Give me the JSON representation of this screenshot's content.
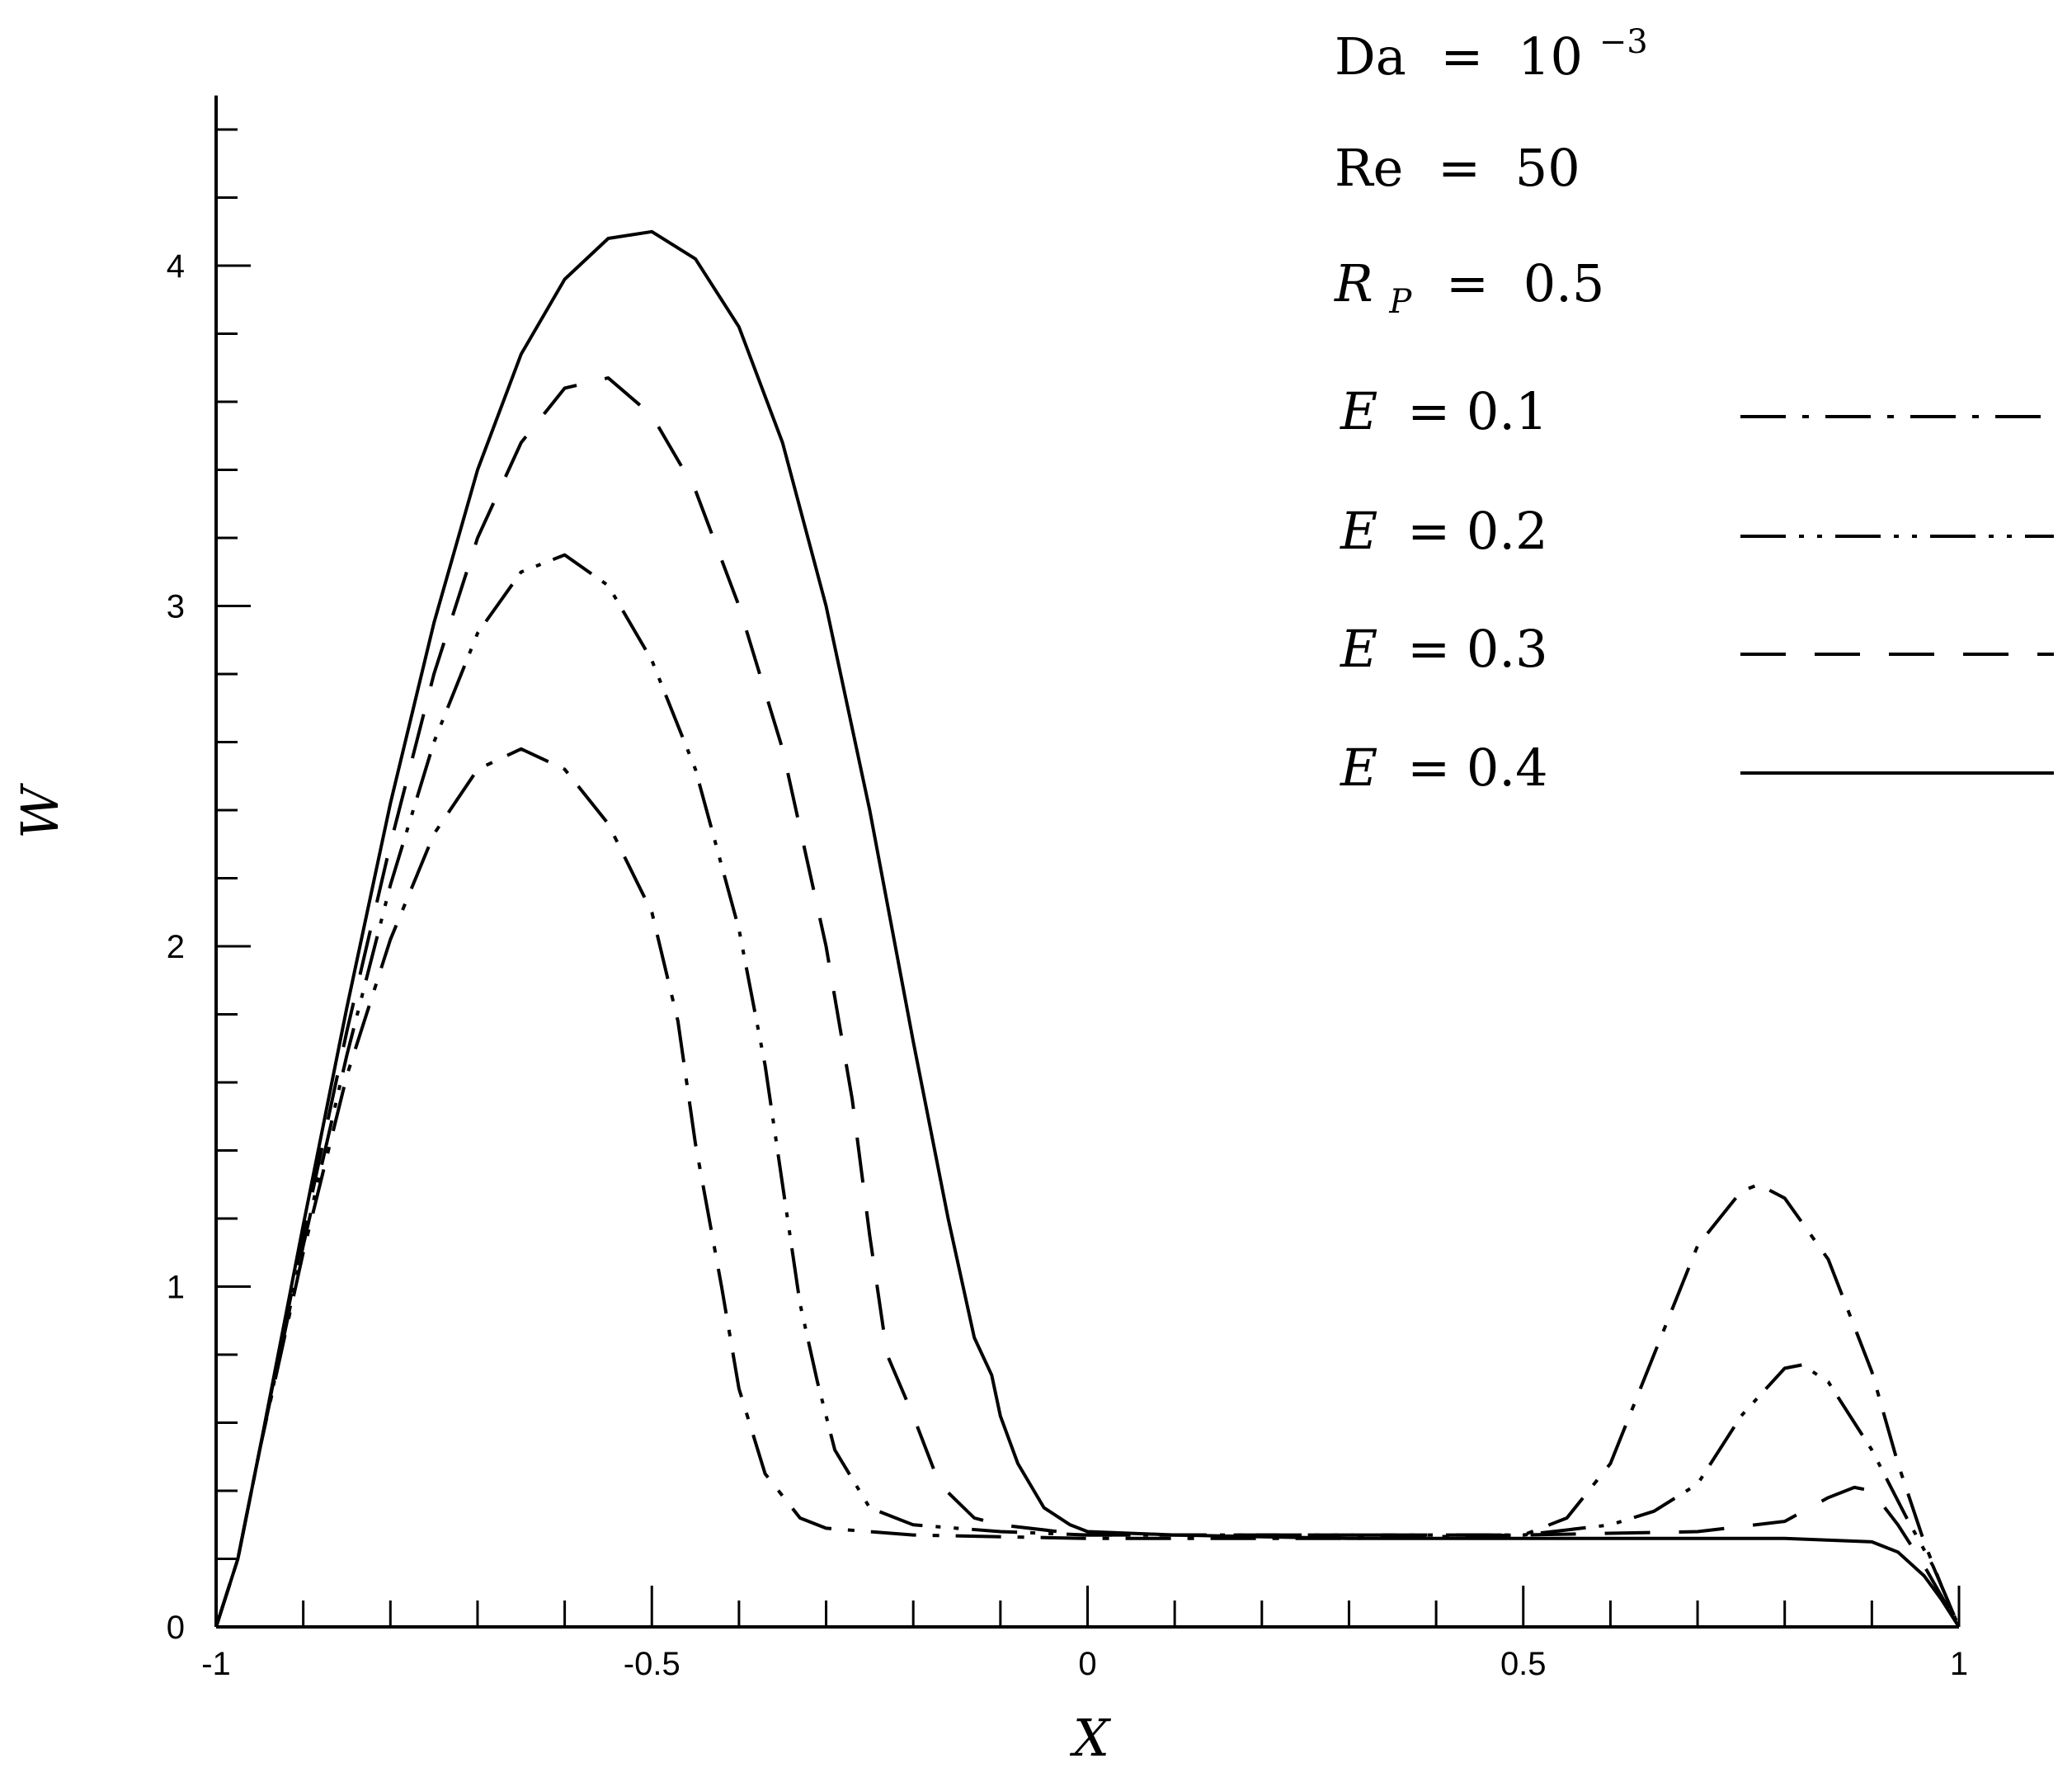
{
  "chart_data": {
    "type": "line",
    "title": "",
    "xlabel": "X",
    "ylabel": "W",
    "xlim": [
      -1,
      1
    ],
    "ylim": [
      0,
      4.5
    ],
    "x_ticks": [
      -1,
      -0.5,
      0,
      0.5,
      1
    ],
    "x_tick_labels": [
      "-1",
      "-0.5",
      "0",
      "0.5",
      "1"
    ],
    "y_ticks": [
      0,
      1,
      2,
      3,
      4
    ],
    "y_tick_labels": [
      "0",
      "1",
      "2",
      "3",
      "4"
    ],
    "grid": false,
    "legend_position": "top-right",
    "parameters": [
      {
        "name": "Da",
        "eq": "=",
        "base": "10",
        "exp": "−3"
      },
      {
        "name": "Re",
        "eq": "=",
        "value": "50"
      },
      {
        "name": "R",
        "sub": "P",
        "eq": "=",
        "value": "0.5"
      }
    ],
    "series": [
      {
        "name": "E",
        "legend_value": "= 0.1",
        "dash": "dash-dot",
        "points": [
          [
            -1,
            0
          ],
          [
            -0.975,
            0.2
          ],
          [
            -0.95,
            0.52
          ],
          [
            -0.9,
            1.1
          ],
          [
            -0.85,
            1.62
          ],
          [
            -0.8,
            2.02
          ],
          [
            -0.75,
            2.33
          ],
          [
            -0.7,
            2.52
          ],
          [
            -0.65,
            2.58
          ],
          [
            -0.6,
            2.52
          ],
          [
            -0.55,
            2.36
          ],
          [
            -0.5,
            2.1
          ],
          [
            -0.47,
            1.78
          ],
          [
            -0.45,
            1.42
          ],
          [
            -0.42,
            1.0
          ],
          [
            -0.4,
            0.7
          ],
          [
            -0.37,
            0.45
          ],
          [
            -0.33,
            0.32
          ],
          [
            -0.3,
            0.29
          ],
          [
            -0.2,
            0.27
          ],
          [
            0,
            0.26
          ],
          [
            0.3,
            0.26
          ],
          [
            0.5,
            0.27
          ],
          [
            0.55,
            0.32
          ],
          [
            0.6,
            0.48
          ],
          [
            0.65,
            0.8
          ],
          [
            0.7,
            1.12
          ],
          [
            0.75,
            1.28
          ],
          [
            0.77,
            1.3
          ],
          [
            0.8,
            1.26
          ],
          [
            0.85,
            1.08
          ],
          [
            0.9,
            0.75
          ],
          [
            0.93,
            0.48
          ],
          [
            0.96,
            0.25
          ],
          [
            0.98,
            0.12
          ],
          [
            1,
            0
          ]
        ]
      },
      {
        "name": "E",
        "legend_value": "= 0.2",
        "dash": "dash-dot-dot",
        "points": [
          [
            -1,
            0
          ],
          [
            -0.975,
            0.2
          ],
          [
            -0.95,
            0.52
          ],
          [
            -0.9,
            1.12
          ],
          [
            -0.85,
            1.68
          ],
          [
            -0.8,
            2.18
          ],
          [
            -0.75,
            2.6
          ],
          [
            -0.7,
            2.92
          ],
          [
            -0.65,
            3.1
          ],
          [
            -0.6,
            3.15
          ],
          [
            -0.55,
            3.06
          ],
          [
            -0.5,
            2.84
          ],
          [
            -0.45,
            2.52
          ],
          [
            -0.4,
            2.05
          ],
          [
            -0.37,
            1.65
          ],
          [
            -0.35,
            1.3
          ],
          [
            -0.33,
            0.95
          ],
          [
            -0.31,
            0.72
          ],
          [
            -0.29,
            0.52
          ],
          [
            -0.25,
            0.35
          ],
          [
            -0.2,
            0.3
          ],
          [
            -0.1,
            0.28
          ],
          [
            0,
            0.27
          ],
          [
            0.3,
            0.27
          ],
          [
            0.5,
            0.27
          ],
          [
            0.6,
            0.3
          ],
          [
            0.65,
            0.34
          ],
          [
            0.7,
            0.42
          ],
          [
            0.75,
            0.62
          ],
          [
            0.8,
            0.76
          ],
          [
            0.82,
            0.77
          ],
          [
            0.85,
            0.72
          ],
          [
            0.9,
            0.52
          ],
          [
            0.94,
            0.32
          ],
          [
            0.97,
            0.18
          ],
          [
            1,
            0
          ]
        ]
      },
      {
        "name": "E",
        "legend_value": "= 0.3",
        "dash": "dashed",
        "points": [
          [
            -1,
            0
          ],
          [
            -0.975,
            0.2
          ],
          [
            -0.95,
            0.52
          ],
          [
            -0.9,
            1.15
          ],
          [
            -0.85,
            1.75
          ],
          [
            -0.8,
            2.3
          ],
          [
            -0.75,
            2.8
          ],
          [
            -0.7,
            3.2
          ],
          [
            -0.65,
            3.48
          ],
          [
            -0.6,
            3.64
          ],
          [
            -0.55,
            3.67
          ],
          [
            -0.5,
            3.56
          ],
          [
            -0.45,
            3.34
          ],
          [
            -0.4,
            3.0
          ],
          [
            -0.35,
            2.58
          ],
          [
            -0.3,
            2.0
          ],
          [
            -0.27,
            1.55
          ],
          [
            -0.25,
            1.15
          ],
          [
            -0.23,
            0.8
          ],
          [
            -0.2,
            0.62
          ],
          [
            -0.17,
            0.42
          ],
          [
            -0.13,
            0.32
          ],
          [
            -0.1,
            0.3
          ],
          [
            0,
            0.27
          ],
          [
            0.3,
            0.27
          ],
          [
            0.5,
            0.27
          ],
          [
            0.7,
            0.28
          ],
          [
            0.8,
            0.31
          ],
          [
            0.85,
            0.38
          ],
          [
            0.88,
            0.41
          ],
          [
            0.9,
            0.4
          ],
          [
            0.93,
            0.3
          ],
          [
            0.96,
            0.18
          ],
          [
            1,
            0
          ]
        ]
      },
      {
        "name": "E",
        "legend_value": "= 0.4",
        "dash": "solid",
        "points": [
          [
            -1,
            0
          ],
          [
            -0.975,
            0.2
          ],
          [
            -0.95,
            0.52
          ],
          [
            -0.9,
            1.18
          ],
          [
            -0.85,
            1.82
          ],
          [
            -0.8,
            2.42
          ],
          [
            -0.75,
            2.95
          ],
          [
            -0.7,
            3.4
          ],
          [
            -0.65,
            3.74
          ],
          [
            -0.6,
            3.96
          ],
          [
            -0.55,
            4.08
          ],
          [
            -0.5,
            4.1
          ],
          [
            -0.45,
            4.02
          ],
          [
            -0.4,
            3.82
          ],
          [
            -0.35,
            3.48
          ],
          [
            -0.3,
            3.0
          ],
          [
            -0.25,
            2.4
          ],
          [
            -0.2,
            1.72
          ],
          [
            -0.16,
            1.2
          ],
          [
            -0.13,
            0.85
          ],
          [
            -0.11,
            0.74
          ],
          [
            -0.1,
            0.62
          ],
          [
            -0.08,
            0.48
          ],
          [
            -0.05,
            0.35
          ],
          [
            -0.02,
            0.3
          ],
          [
            0,
            0.28
          ],
          [
            0.1,
            0.27
          ],
          [
            0.3,
            0.26
          ],
          [
            0.5,
            0.26
          ],
          [
            0.7,
            0.26
          ],
          [
            0.8,
            0.26
          ],
          [
            0.9,
            0.25
          ],
          [
            0.93,
            0.22
          ],
          [
            0.96,
            0.15
          ],
          [
            0.98,
            0.08
          ],
          [
            1,
            0
          ]
        ]
      }
    ]
  }
}
